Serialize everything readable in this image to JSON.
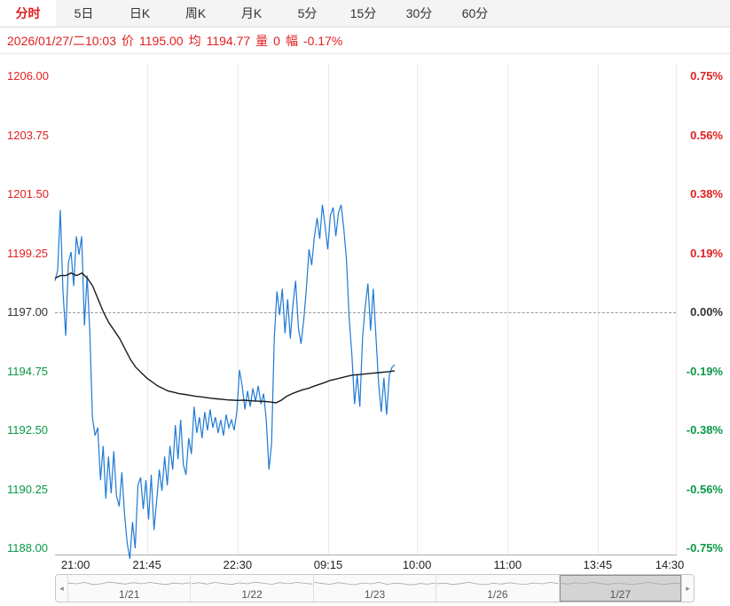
{
  "colors": {
    "up": "#e02020",
    "down": "#089947",
    "neutral": "#333333",
    "price_line": "#1f7ad4",
    "avg_line": "#1a1a1a"
  },
  "tabs": [
    {
      "label": "分时",
      "selected": true
    },
    {
      "label": "5日",
      "selected": false
    },
    {
      "label": "日K",
      "selected": false
    },
    {
      "label": "周K",
      "selected": false
    },
    {
      "label": "月K",
      "selected": false
    },
    {
      "label": "5分",
      "selected": false
    },
    {
      "label": "15分",
      "selected": false
    },
    {
      "label": "30分",
      "selected": false
    },
    {
      "label": "60分",
      "selected": false
    }
  ],
  "info": {
    "datetime": "2026/01/27/二10:03",
    "price_label": "价",
    "price": "1195.00",
    "avg_label": "均",
    "avg": "1194.77",
    "vol_label": "量",
    "vol": "0",
    "chg_label": "幅",
    "chg": "-0.17%"
  },
  "chart_data": {
    "type": "line",
    "title": "分时",
    "ylim": [
      1188.0,
      1206.0
    ],
    "baseline": 1197.0,
    "y_axis_left": {
      "labels": [
        "1206.00",
        "1203.75",
        "1201.50",
        "1199.25",
        "1197.00",
        "1194.75",
        "1192.50",
        "1190.25",
        "1188.00"
      ],
      "colors": [
        "#e02020",
        "#e02020",
        "#e02020",
        "#e02020",
        "#333333",
        "#089947",
        "#089947",
        "#089947",
        "#089947"
      ]
    },
    "y_axis_right": {
      "labels": [
        "0.75%",
        "0.56%",
        "0.38%",
        "0.19%",
        "0.00%",
        "-0.19%",
        "-0.38%",
        "-0.56%",
        "-0.75%"
      ],
      "colors": [
        "#e02020",
        "#e02020",
        "#e02020",
        "#e02020",
        "#333333",
        "#089947",
        "#089947",
        "#089947",
        "#089947"
      ]
    },
    "x_axis": {
      "tick_labels": [
        "21:00",
        "21:45",
        "22:30",
        "09:15",
        "10:00",
        "11:00",
        "13:45",
        "14:30"
      ],
      "tick_pos": [
        0.033,
        0.148,
        0.294,
        0.44,
        0.583,
        0.729,
        0.874,
        0.99
      ],
      "grid_pos": [
        0.148,
        0.294,
        0.44,
        0.583,
        0.729,
        0.874,
        1.0
      ]
    },
    "series": [
      {
        "name": "price",
        "color": "#1f7ad4",
        "x_start": 0.0,
        "x_end": 0.547,
        "values": [
          1198.2,
          1198.6,
          1200.9,
          1197.8,
          1196.1,
          1198.9,
          1199.3,
          1198.0,
          1199.9,
          1199.2,
          1199.9,
          1196.5,
          1198.4,
          1196.3,
          1193.0,
          1192.3,
          1192.6,
          1190.6,
          1191.9,
          1189.9,
          1191.5,
          1190.1,
          1191.7,
          1190.0,
          1189.6,
          1190.9,
          1189.3,
          1188.2,
          1187.6,
          1189.0,
          1188.0,
          1190.4,
          1190.7,
          1189.5,
          1190.6,
          1189.1,
          1190.8,
          1188.7,
          1189.8,
          1191.0,
          1190.2,
          1191.5,
          1190.4,
          1191.9,
          1191.0,
          1192.7,
          1191.4,
          1192.9,
          1191.2,
          1190.8,
          1192.2,
          1191.6,
          1193.4,
          1192.4,
          1193.0,
          1192.2,
          1193.2,
          1192.5,
          1193.3,
          1192.6,
          1193.0,
          1192.4,
          1192.9,
          1192.3,
          1193.1,
          1192.6,
          1192.9,
          1192.5,
          1193.2,
          1194.8,
          1194.2,
          1193.3,
          1194.0,
          1193.4,
          1194.1,
          1193.6,
          1194.2,
          1193.5,
          1193.9,
          1192.9,
          1191.0,
          1192.0,
          1196.0,
          1197.8,
          1196.9,
          1197.9,
          1196.2,
          1197.5,
          1196.0,
          1197.3,
          1198.2,
          1196.4,
          1195.8,
          1196.7,
          1197.9,
          1199.4,
          1198.8,
          1199.9,
          1200.6,
          1199.8,
          1201.1,
          1200.3,
          1199.4,
          1200.7,
          1201.0,
          1199.9,
          1200.8,
          1201.1,
          1200.2,
          1199.0,
          1196.8,
          1195.4,
          1193.5,
          1194.6,
          1193.4,
          1196.0,
          1197.2,
          1198.1,
          1196.3,
          1197.9,
          1196.1,
          1194.3,
          1193.2,
          1194.5,
          1193.1,
          1194.6,
          1194.9,
          1195.0
        ]
      },
      {
        "name": "average",
        "color": "#1a1a1a",
        "x_start": 0.0,
        "x_end": 0.547,
        "values": [
          1198.3,
          1198.4,
          1198.4,
          1198.5,
          1198.4,
          1198.5,
          1198.3,
          1198.0,
          1197.5,
          1197.0,
          1196.6,
          1196.3,
          1196.0,
          1195.6,
          1195.2,
          1194.9,
          1194.7,
          1194.5,
          1194.35,
          1194.2,
          1194.1,
          1194.0,
          1193.95,
          1193.9,
          1193.87,
          1193.84,
          1193.8,
          1193.78,
          1193.75,
          1193.72,
          1193.7,
          1193.68,
          1193.66,
          1193.65,
          1193.64,
          1193.65,
          1193.63,
          1193.62,
          1193.61,
          1193.6,
          1193.58,
          1193.55,
          1193.65,
          1193.8,
          1193.9,
          1193.98,
          1194.05,
          1194.1,
          1194.18,
          1194.25,
          1194.32,
          1194.4,
          1194.45,
          1194.5,
          1194.55,
          1194.6,
          1194.62,
          1194.64,
          1194.66,
          1194.68,
          1194.7,
          1194.72,
          1194.74,
          1194.77
        ]
      }
    ]
  },
  "navigator": {
    "left_arrow": "◂",
    "right_arrow": "▸",
    "sections": [
      {
        "label": "1/21",
        "selected": false,
        "spark": [
          0.55,
          0.5,
          0.6,
          0.45,
          0.5,
          0.62,
          0.55,
          0.48,
          0.58,
          0.5,
          0.6,
          0.52,
          0.45,
          0.55,
          0.5,
          0.58
        ]
      },
      {
        "label": "1/22",
        "selected": false,
        "spark": [
          0.5,
          0.58,
          0.48,
          0.6,
          0.52,
          0.45,
          0.57,
          0.5,
          0.62,
          0.53,
          0.47,
          0.58,
          0.5,
          0.6,
          0.54,
          0.48
        ]
      },
      {
        "label": "1/23",
        "selected": false,
        "spark": [
          0.6,
          0.52,
          0.47,
          0.58,
          0.5,
          0.44,
          0.56,
          0.5,
          0.6,
          0.46,
          0.55,
          0.5,
          0.42,
          0.52,
          0.48,
          0.55
        ]
      },
      {
        "label": "1/26",
        "selected": false,
        "spark": [
          0.5,
          0.55,
          0.45,
          0.52,
          0.6,
          0.5,
          0.44,
          0.54,
          0.48,
          0.58,
          0.5,
          0.46,
          0.56,
          0.5,
          0.6,
          0.52
        ]
      },
      {
        "label": "1/27",
        "selected": true,
        "spark": [
          0.55,
          0.48,
          0.58,
          0.5,
          0.62,
          0.52,
          0.46,
          0.56,
          0.5,
          0.44,
          0.54,
          0.6,
          0.5,
          0.46,
          0.55,
          0.5
        ]
      }
    ]
  },
  "layout_labels": {
    "chart_name": "time-share-chart"
  }
}
